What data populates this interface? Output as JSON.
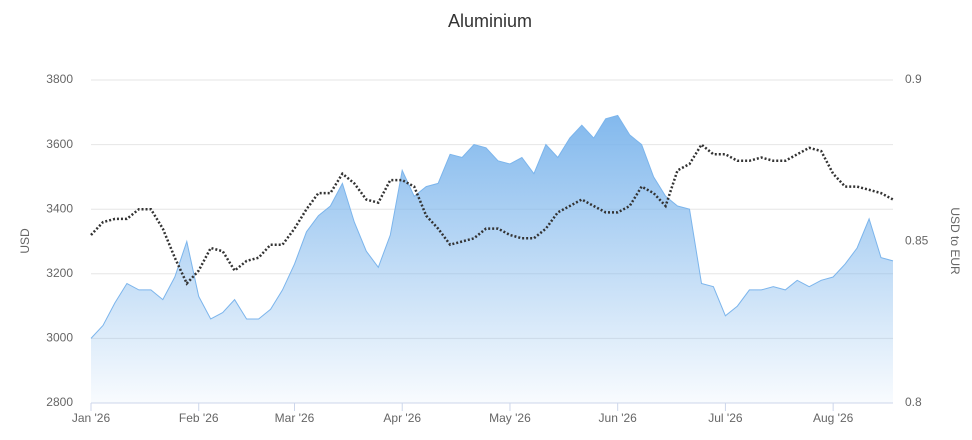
{
  "chart_data": {
    "type": "area-line",
    "title": "Aluminium",
    "categories": [
      "Jan '26",
      null,
      null,
      null,
      null,
      null,
      null,
      null,
      null,
      "Feb '26",
      null,
      null,
      null,
      null,
      null,
      null,
      null,
      "Mar '26",
      null,
      null,
      null,
      null,
      null,
      null,
      null,
      null,
      "Apr '26",
      null,
      null,
      null,
      null,
      null,
      null,
      null,
      null,
      "May '26",
      null,
      null,
      null,
      null,
      null,
      null,
      null,
      null,
      "Jun '26",
      null,
      null,
      null,
      null,
      null,
      null,
      null,
      null,
      "Jul '26",
      null,
      null,
      null,
      null,
      null,
      null,
      null,
      null,
      "Aug '26",
      null,
      null,
      null,
      null,
      null
    ],
    "series": [
      {
        "type": "area",
        "color": "#7cb5ec",
        "values": [
          3000,
          3040,
          3110,
          3170,
          3150,
          3150,
          3120,
          3190,
          3300,
          3130,
          3060,
          3080,
          3120,
          3060,
          3060,
          3090,
          3150,
          3230,
          3330,
          3380,
          3410,
          3480,
          3360,
          3270,
          3220,
          3320,
          3520,
          3440,
          3470,
          3480,
          3570,
          3560,
          3600,
          3590,
          3550,
          3540,
          3560,
          3510,
          3600,
          3560,
          3620,
          3660,
          3620,
          3680,
          3690,
          3630,
          3600,
          3500,
          3440,
          3410,
          3400,
          3170,
          3160,
          3070,
          3100,
          3150,
          3150,
          3160,
          3150,
          3180,
          3160,
          3180,
          3190,
          3230,
          3280,
          3370,
          3250,
          3240
        ]
      },
      {
        "type": "line",
        "axis": "y2",
        "color": "#333333",
        "values": [
          0.852,
          0.856,
          0.857,
          0.857,
          0.86,
          0.86,
          0.854,
          0.845,
          0.837,
          0.841,
          0.848,
          0.847,
          0.841,
          0.844,
          0.845,
          0.849,
          0.849,
          0.854,
          0.86,
          0.865,
          0.865,
          0.871,
          0.868,
          0.863,
          0.862,
          0.869,
          0.869,
          0.867,
          0.858,
          0.854,
          0.849,
          0.85,
          0.851,
          0.854,
          0.854,
          0.852,
          0.851,
          0.851,
          0.854,
          0.859,
          0.861,
          0.863,
          0.861,
          0.859,
          0.859,
          0.861,
          0.867,
          0.865,
          0.861,
          0.872,
          0.874,
          0.88,
          0.877,
          0.877,
          0.875,
          0.875,
          0.876,
          0.875,
          0.875,
          0.877,
          0.879,
          0.878,
          0.871,
          0.867,
          0.867,
          0.866,
          0.865,
          0.863
        ]
      }
    ],
    "ylabel": "USD",
    "y2label": "USD to EUR",
    "ylim": [
      2800,
      3800
    ],
    "yticks": [
      2800,
      3000,
      3200,
      3400,
      3600,
      3800
    ],
    "y2lim": [
      0.8,
      0.9
    ],
    "y2ticks": [
      0.8,
      0.85,
      0.9
    ],
    "grid": true
  }
}
